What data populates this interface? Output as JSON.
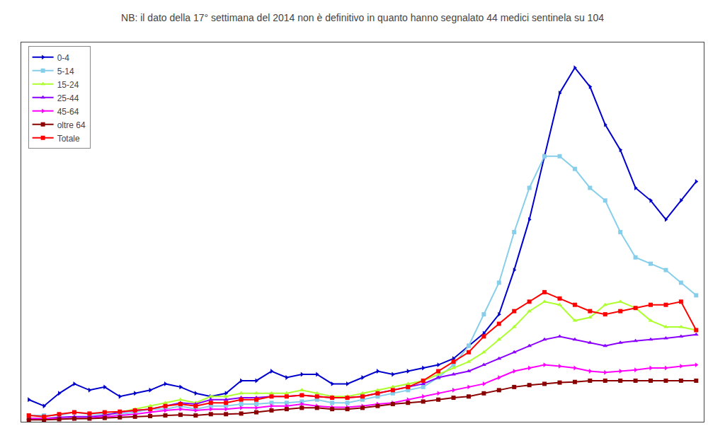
{
  "chart_data": {
    "type": "line",
    "title": "NB: il dato della 17° settimana del 2014 non è definitivo in quanto hanno segnalato 44 medici sentinela su 104",
    "x": [
      0,
      1,
      2,
      3,
      4,
      5,
      6,
      7,
      8,
      9,
      10,
      11,
      12,
      13,
      14,
      15,
      16,
      17,
      18,
      19,
      20,
      21,
      22,
      23,
      24,
      25,
      26,
      27,
      28,
      29,
      30,
      31,
      32,
      33,
      34,
      35,
      36,
      37,
      38,
      39,
      40,
      41,
      42,
      43,
      44
    ],
    "xlim": [
      -0.5,
      44.5
    ],
    "ylim": [
      0,
      60
    ],
    "tick_labels": false,
    "grid": false,
    "legend": "upper left",
    "series": [
      {
        "name": "0-4",
        "color": "#0000cd",
        "marker": "triangle-right",
        "values": [
          3.5,
          2.5,
          4.5,
          6.0,
          5.0,
          5.5,
          4.0,
          4.5,
          5.0,
          6.0,
          5.5,
          4.5,
          4.0,
          4.5,
          6.5,
          6.5,
          8.0,
          7.0,
          7.5,
          7.5,
          6.0,
          6.0,
          7.0,
          8.0,
          7.5,
          8.0,
          8.5,
          9.0,
          10.0,
          12.0,
          14.0,
          17.0,
          24.0,
          32.0,
          42.0,
          52.0,
          56.0,
          53.0,
          47.0,
          43.0,
          37.0,
          35.0,
          32.0,
          35.0,
          38.0
        ]
      },
      {
        "name": "5-14",
        "color": "#87ceeb",
        "marker": "square",
        "values": [
          1.0,
          1.0,
          1.0,
          1.5,
          1.2,
          1.3,
          1.2,
          1.5,
          2.0,
          2.0,
          2.5,
          2.0,
          2.5,
          2.5,
          2.8,
          2.8,
          3.0,
          3.0,
          3.2,
          3.5,
          3.0,
          3.0,
          3.5,
          4.0,
          4.5,
          5.0,
          5.5,
          7.0,
          9.0,
          12.0,
          17.0,
          22.0,
          30.0,
          37.0,
          42.0,
          42.0,
          40.0,
          37.0,
          35.0,
          30.0,
          26.0,
          25.0,
          24.0,
          22.0,
          20.0
        ]
      },
      {
        "name": "15-24",
        "color": "#adff2f",
        "marker": "triangle-up",
        "values": [
          0.5,
          0.5,
          0.5,
          0.5,
          0.5,
          1.0,
          1.5,
          2.0,
          2.5,
          3.0,
          3.5,
          3.0,
          4.0,
          4.0,
          4.5,
          4.5,
          4.5,
          4.5,
          5.0,
          4.5,
          4.0,
          4.0,
          4.5,
          5.0,
          5.5,
          6.0,
          6.5,
          7.5,
          8.5,
          9.5,
          11.0,
          13.0,
          15.0,
          17.5,
          19.0,
          18.5,
          16.0,
          16.5,
          18.5,
          19.0,
          18.0,
          16.0,
          15.0,
          15.0,
          14.5
        ]
      },
      {
        "name": "25-44",
        "color": "#8b00ff",
        "marker": "triangle-up",
        "values": [
          0.5,
          0.5,
          0.7,
          0.8,
          0.8,
          1.0,
          1.5,
          1.8,
          2.0,
          2.5,
          3.0,
          2.8,
          3.5,
          3.5,
          3.8,
          3.8,
          4.0,
          4.0,
          4.2,
          4.0,
          3.8,
          3.8,
          4.0,
          4.5,
          5.0,
          5.5,
          6.0,
          7.0,
          7.5,
          8.0,
          9.0,
          10.0,
          11.0,
          12.0,
          13.0,
          13.5,
          13.0,
          12.5,
          12.0,
          12.5,
          12.8,
          13.0,
          13.2,
          13.5,
          13.8
        ]
      },
      {
        "name": "45-64",
        "color": "#ff00ff",
        "marker": "triangle-right",
        "values": [
          0.5,
          0.5,
          0.5,
          0.5,
          0.6,
          0.8,
          1.0,
          1.2,
          1.5,
          1.8,
          2.0,
          1.8,
          2.0,
          2.0,
          2.2,
          2.2,
          2.5,
          2.5,
          2.8,
          2.5,
          2.3,
          2.3,
          2.5,
          2.8,
          3.0,
          3.5,
          4.0,
          4.5,
          5.0,
          5.5,
          6.0,
          7.0,
          8.0,
          8.5,
          9.0,
          8.8,
          8.5,
          8.0,
          7.8,
          8.0,
          8.2,
          8.5,
          8.5,
          8.8,
          9.0
        ]
      },
      {
        "name": "oltre 64",
        "color": "#8b0000",
        "marker": "square",
        "values": [
          0.3,
          0.3,
          0.4,
          0.5,
          0.5,
          0.6,
          0.7,
          0.8,
          0.9,
          1.0,
          1.1,
          1.0,
          1.2,
          1.2,
          1.3,
          1.5,
          1.8,
          2.0,
          2.2,
          2.2,
          2.0,
          2.0,
          2.2,
          2.5,
          2.8,
          3.0,
          3.2,
          3.5,
          3.8,
          4.0,
          4.5,
          5.0,
          5.5,
          5.8,
          6.0,
          6.2,
          6.3,
          6.5,
          6.5,
          6.5,
          6.5,
          6.5,
          6.5,
          6.5,
          6.5
        ]
      },
      {
        "name": "Totale",
        "color": "#ff0000",
        "marker": "square",
        "values": [
          1.0,
          0.8,
          1.2,
          1.5,
          1.3,
          1.5,
          1.6,
          1.8,
          2.0,
          2.5,
          2.8,
          2.5,
          3.0,
          3.0,
          3.5,
          3.5,
          4.0,
          4.0,
          4.2,
          4.0,
          3.8,
          3.8,
          4.0,
          4.5,
          5.0,
          5.5,
          6.5,
          8.0,
          9.5,
          11.0,
          13.5,
          15.5,
          17.5,
          19.0,
          20.5,
          19.5,
          18.5,
          17.5,
          17.0,
          17.5,
          18.0,
          18.5,
          18.5,
          19.0,
          14.5
        ]
      }
    ]
  }
}
